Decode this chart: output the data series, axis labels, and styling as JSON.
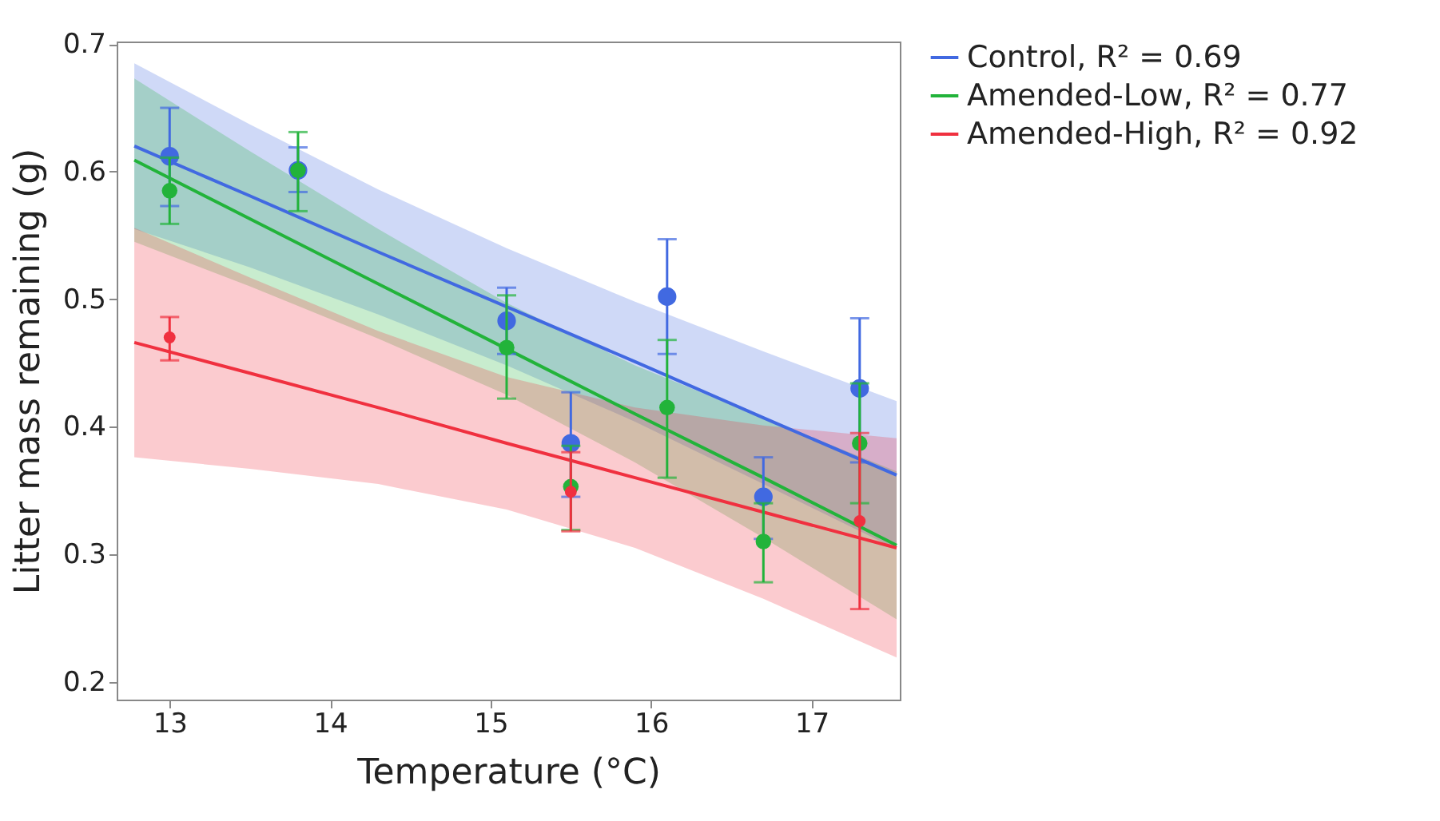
{
  "chart_data": {
    "type": "scatter",
    "xlabel": "Temperature (°C)",
    "ylabel": "Litter mass remaining (g)",
    "xlim": [
      12.67,
      17.55
    ],
    "ylim": [
      0.186,
      0.702
    ],
    "xticks": [
      13,
      14,
      15,
      16,
      17
    ],
    "yticks": [
      0.2,
      0.3,
      0.4,
      0.5,
      0.6,
      0.7
    ],
    "legend": "top right",
    "series": [
      {
        "type": "line",
        "marker": "none",
        "name": "Control, R² = 0.69",
        "color": "#4169e1",
        "x": [
          12.78,
          13.5,
          14.3,
          15.1,
          15.9,
          16.7,
          17.53
        ],
        "values": [
          0.62,
          0.581,
          0.537,
          0.494,
          0.451,
          0.407,
          0.362
        ],
        "lower": [
          0.555,
          0.525,
          0.488,
          0.448,
          0.404,
          0.355,
          0.304
        ],
        "upper": [
          0.685,
          0.637,
          0.586,
          0.54,
          0.498,
          0.459,
          0.42
        ]
      },
      {
        "type": "line",
        "marker": "none",
        "name": "Amended-Low, R² = 0.77",
        "color": "#22b33a",
        "x": [
          12.78,
          13.5,
          14.3,
          15.1,
          15.9,
          16.7,
          17.53
        ],
        "values": [
          0.609,
          0.563,
          0.512,
          0.461,
          0.41,
          0.36,
          0.307
        ],
        "lower": [
          0.545,
          0.51,
          0.469,
          0.425,
          0.372,
          0.313,
          0.249
        ],
        "upper": [
          0.673,
          0.616,
          0.555,
          0.497,
          0.448,
          0.407,
          0.365
        ]
      },
      {
        "type": "line",
        "marker": "none",
        "name": "Amended-High, R² = 0.92",
        "color": "#f0303f",
        "x": [
          12.78,
          13.5,
          14.3,
          15.1,
          15.9,
          16.7,
          17.53
        ],
        "values": [
          0.466,
          0.442,
          0.415,
          0.387,
          0.36,
          0.333,
          0.305
        ],
        "lower": [
          0.376,
          0.367,
          0.355,
          0.335,
          0.305,
          0.265,
          0.219
        ],
        "upper": [
          0.556,
          0.517,
          0.475,
          0.439,
          0.415,
          0.401,
          0.391
        ]
      },
      {
        "type": "scatter",
        "marker": "circle",
        "color": "#4169e1",
        "x": [
          13,
          13.8,
          15.1,
          15.5,
          16.1,
          16.7,
          17.3
        ],
        "values": [
          0.612,
          0.601,
          0.483,
          0.387,
          0.502,
          0.345,
          0.43
        ],
        "errors": [
          [
            0.573,
            0.65
          ],
          [
            0.584,
            0.619
          ],
          [
            0.457,
            0.509
          ],
          [
            0.345,
            0.427
          ],
          [
            0.457,
            0.547
          ],
          [
            0.312,
            0.376
          ],
          [
            0.372,
            0.485
          ]
        ]
      },
      {
        "type": "scatter",
        "marker": "circle",
        "color": "#22b33a",
        "x": [
          13,
          13.8,
          15.1,
          15.5,
          16.1,
          16.7,
          17.3
        ],
        "values": [
          0.585,
          0.601,
          0.462,
          0.353,
          0.415,
          0.31,
          0.387
        ],
        "errors": [
          [
            0.559,
            0.611
          ],
          [
            0.569,
            0.631
          ],
          [
            0.422,
            0.503
          ],
          [
            0.319,
            0.385
          ],
          [
            0.36,
            0.468
          ],
          [
            0.278,
            0.34
          ],
          [
            0.34,
            0.434
          ]
        ]
      },
      {
        "type": "scatter",
        "marker": "circle",
        "color": "#f0303f",
        "x": [
          13,
          15.5,
          17.3
        ],
        "values": [
          0.47,
          0.349,
          0.326
        ],
        "errors": [
          [
            0.452,
            0.486
          ],
          [
            0.318,
            0.38
          ],
          [
            0.257,
            0.395
          ]
        ]
      }
    ]
  }
}
